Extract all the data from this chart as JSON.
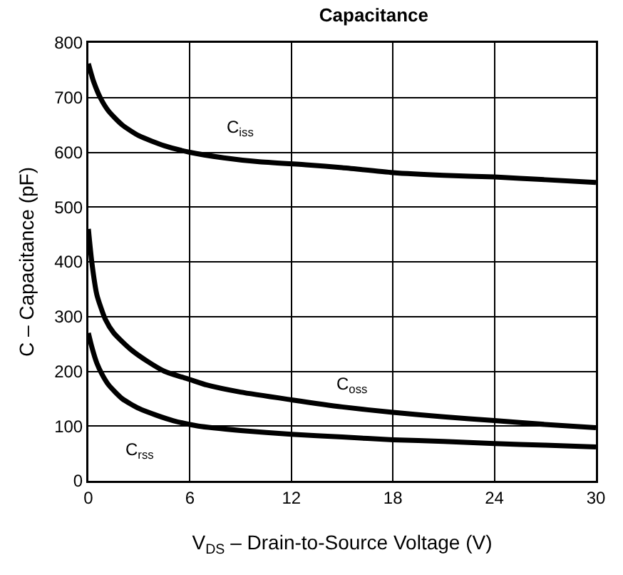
{
  "chart_data": {
    "type": "line",
    "title": "Capacitance",
    "xlabel": "V$_{DS}$ – Drain-to-Source Voltage (V)",
    "ylabel": "C – Capacitance (pF)",
    "xlim": [
      0,
      30
    ],
    "xticks": [
      0,
      6,
      12,
      18,
      24,
      30
    ],
    "ylim": [
      0,
      800
    ],
    "yticks": [
      0,
      100,
      200,
      300,
      400,
      500,
      600,
      700,
      800
    ],
    "grid": true,
    "legend": false,
    "marker": "none",
    "line_style": "solid",
    "series": [
      {
        "name": "C$_{iss}$",
        "color": "#000000",
        "x": [
          0,
          0.3,
          0.7,
          1.2,
          2,
          3,
          4.5,
          6,
          8,
          10,
          13,
          15,
          18,
          21,
          24,
          27,
          30
        ],
        "values": [
          762,
          730,
          700,
          675,
          650,
          630,
          612,
          600,
          590,
          583,
          577,
          572,
          563,
          558,
          555,
          550,
          545
        ]
      },
      {
        "name": "C$_{oss}$",
        "color": "#000000",
        "x": [
          0,
          0.2,
          0.5,
          1,
          1.5,
          2.5,
          3.5,
          4.5,
          6,
          7,
          9,
          12,
          15,
          18,
          21,
          24,
          27,
          30
        ],
        "values": [
          460,
          400,
          340,
          295,
          270,
          240,
          218,
          200,
          185,
          175,
          162,
          148,
          135,
          125,
          117,
          110,
          103,
          97
        ]
      },
      {
        "name": "C$_{rss}$",
        "color": "#000000",
        "x": [
          0,
          0.2,
          0.5,
          0.8,
          1.2,
          2,
          3,
          4,
          5,
          6.5,
          9,
          12,
          15,
          18,
          21,
          24,
          27,
          30
        ],
        "values": [
          270,
          245,
          215,
          195,
          175,
          150,
          132,
          120,
          110,
          100,
          92,
          85,
          80,
          75,
          72,
          68,
          65,
          62
        ]
      }
    ]
  }
}
